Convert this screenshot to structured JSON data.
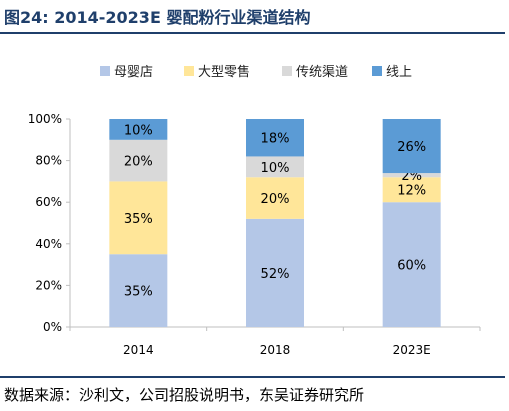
{
  "figure": {
    "title": "图24:  2014-2023E 婴配粉行业渠道结构",
    "source": "数据来源：沙利文，公司招股说明书，东吴证券研究所"
  },
  "chart_data": {
    "type": "bar",
    "stacked": true,
    "categories": [
      "2014",
      "2018",
      "2023E"
    ],
    "ylim": [
      0,
      100
    ],
    "yticks": [
      "0%",
      "20%",
      "40%",
      "60%",
      "80%",
      "100%"
    ],
    "legend_position": "top",
    "grid": false,
    "series": [
      {
        "name": "母婴店",
        "values": [
          35,
          52,
          60
        ],
        "labels": [
          "35%",
          "52%",
          "60%"
        ],
        "color": "#b4c7e7"
      },
      {
        "name": "大型零售",
        "values": [
          35,
          20,
          12
        ],
        "labels": [
          "35%",
          "20%",
          "12%"
        ],
        "color": "#ffe699"
      },
      {
        "name": "传统渠道",
        "values": [
          20,
          10,
          2
        ],
        "labels": [
          "20%",
          "10%",
          "2%"
        ],
        "color": "#d9d9d9"
      },
      {
        "name": "线上",
        "values": [
          10,
          18,
          26
        ],
        "labels": [
          "10%",
          "18%",
          "26%"
        ],
        "color": "#5b9bd5"
      }
    ]
  }
}
